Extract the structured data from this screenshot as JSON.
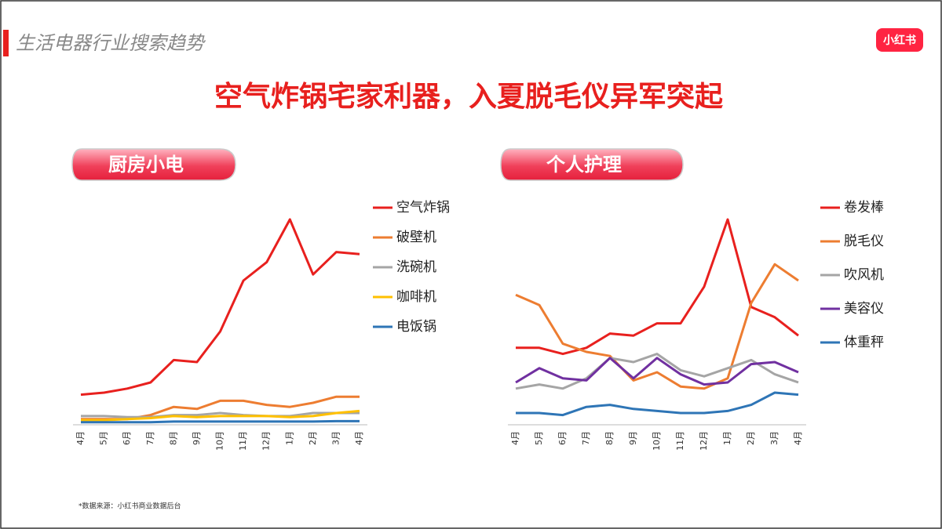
{
  "header": {
    "section": "生活电器行业搜索趋势",
    "logo": "小红书",
    "headline": "空气炸锅宅家利器，入夏脱毛仪异军突起"
  },
  "footnote": "*数据来源：小红书商业数据后台",
  "chart_data": [
    {
      "type": "line",
      "title": "厨房小电",
      "categories": [
        "4月",
        "5月",
        "6月",
        "7月",
        "8月",
        "9月",
        "10月",
        "11月",
        "12月",
        "1月",
        "2月",
        "3月",
        "4月"
      ],
      "series": [
        {
          "name": "空气炸锅",
          "color": "#e8201e",
          "values": [
            14,
            15,
            17,
            20,
            31,
            30,
            45,
            70,
            79,
            100,
            73,
            84,
            83
          ]
        },
        {
          "name": "破壁机",
          "color": "#ed7d31",
          "values": [
            2,
            2,
            2,
            4,
            8,
            7,
            11,
            11,
            9,
            8,
            10,
            13,
            13
          ]
        },
        {
          "name": "洗碗机",
          "color": "#a5a5a5",
          "values": [
            3.5,
            3.5,
            3,
            3,
            4,
            4,
            5,
            4,
            3.5,
            3.5,
            5,
            5,
            5
          ]
        },
        {
          "name": "咖啡机",
          "color": "#ffc000",
          "values": [
            1.5,
            1.5,
            2,
            2.5,
            3.5,
            3,
            3.5,
            3.5,
            3.5,
            3,
            3.5,
            5,
            6
          ]
        },
        {
          "name": "电饭锅",
          "color": "#2e75b6",
          "values": [
            0.5,
            0.5,
            0.5,
            0.5,
            0.8,
            0.8,
            0.8,
            0.8,
            0.8,
            0.8,
            0.8,
            1,
            1
          ]
        }
      ]
    },
    {
      "type": "line",
      "title": "个人护理",
      "categories": [
        "4月",
        "5月",
        "6月",
        "7月",
        "8月",
        "9月",
        "10月",
        "11月",
        "12月",
        "1月",
        "2月",
        "3月",
        "4月"
      ],
      "series": [
        {
          "name": "卷发棒",
          "color": "#e8201e",
          "values": [
            37,
            37,
            34,
            37,
            44,
            43,
            49,
            49,
            67,
            100,
            57,
            52,
            43
          ]
        },
        {
          "name": "脱毛仪",
          "color": "#ed7d31",
          "values": [
            63,
            58,
            39,
            35,
            33,
            21,
            25,
            18,
            17,
            22,
            59,
            78,
            70
          ]
        },
        {
          "name": "吹风机",
          "color": "#a5a5a5",
          "values": [
            17,
            19,
            17,
            22,
            32,
            30,
            34,
            26,
            23,
            27,
            31,
            24,
            20
          ]
        },
        {
          "name": "美容仪",
          "color": "#7030a0",
          "values": [
            20,
            27,
            22,
            21,
            32,
            22,
            32,
            24,
            19,
            20,
            29,
            30,
            25
          ]
        },
        {
          "name": "体重秤",
          "color": "#2e75b6",
          "values": [
            5,
            5,
            4,
            8,
            9,
            7,
            6,
            5,
            5,
            6,
            9,
            15,
            14
          ]
        }
      ]
    }
  ]
}
